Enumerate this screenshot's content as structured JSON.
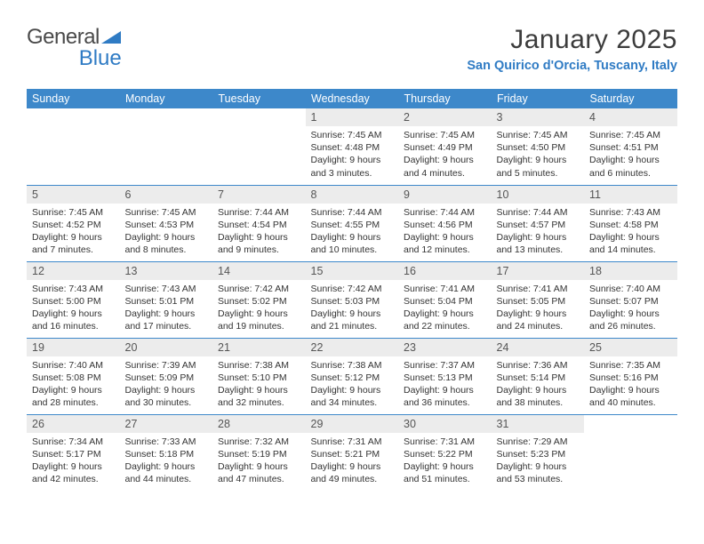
{
  "brand": {
    "part1": "General",
    "part2": "Blue"
  },
  "title": "January 2025",
  "location": "San Quirico d'Orcia, Tuscany, Italy",
  "colors": {
    "header_bg": "#3d88ca",
    "header_text": "#ffffff",
    "daynum_bg": "#ececec",
    "border": "#3d88ca",
    "brand_blue": "#2f7bc4",
    "text": "#333333"
  },
  "daynames": [
    "Sunday",
    "Monday",
    "Tuesday",
    "Wednesday",
    "Thursday",
    "Friday",
    "Saturday"
  ],
  "weeks": [
    [
      null,
      null,
      null,
      {
        "n": "1",
        "sr": "7:45 AM",
        "ss": "4:48 PM",
        "dl": "9 hours and 3 minutes."
      },
      {
        "n": "2",
        "sr": "7:45 AM",
        "ss": "4:49 PM",
        "dl": "9 hours and 4 minutes."
      },
      {
        "n": "3",
        "sr": "7:45 AM",
        "ss": "4:50 PM",
        "dl": "9 hours and 5 minutes."
      },
      {
        "n": "4",
        "sr": "7:45 AM",
        "ss": "4:51 PM",
        "dl": "9 hours and 6 minutes."
      }
    ],
    [
      {
        "n": "5",
        "sr": "7:45 AM",
        "ss": "4:52 PM",
        "dl": "9 hours and 7 minutes."
      },
      {
        "n": "6",
        "sr": "7:45 AM",
        "ss": "4:53 PM",
        "dl": "9 hours and 8 minutes."
      },
      {
        "n": "7",
        "sr": "7:44 AM",
        "ss": "4:54 PM",
        "dl": "9 hours and 9 minutes."
      },
      {
        "n": "8",
        "sr": "7:44 AM",
        "ss": "4:55 PM",
        "dl": "9 hours and 10 minutes."
      },
      {
        "n": "9",
        "sr": "7:44 AM",
        "ss": "4:56 PM",
        "dl": "9 hours and 12 minutes."
      },
      {
        "n": "10",
        "sr": "7:44 AM",
        "ss": "4:57 PM",
        "dl": "9 hours and 13 minutes."
      },
      {
        "n": "11",
        "sr": "7:43 AM",
        "ss": "4:58 PM",
        "dl": "9 hours and 14 minutes."
      }
    ],
    [
      {
        "n": "12",
        "sr": "7:43 AM",
        "ss": "5:00 PM",
        "dl": "9 hours and 16 minutes."
      },
      {
        "n": "13",
        "sr": "7:43 AM",
        "ss": "5:01 PM",
        "dl": "9 hours and 17 minutes."
      },
      {
        "n": "14",
        "sr": "7:42 AM",
        "ss": "5:02 PM",
        "dl": "9 hours and 19 minutes."
      },
      {
        "n": "15",
        "sr": "7:42 AM",
        "ss": "5:03 PM",
        "dl": "9 hours and 21 minutes."
      },
      {
        "n": "16",
        "sr": "7:41 AM",
        "ss": "5:04 PM",
        "dl": "9 hours and 22 minutes."
      },
      {
        "n": "17",
        "sr": "7:41 AM",
        "ss": "5:05 PM",
        "dl": "9 hours and 24 minutes."
      },
      {
        "n": "18",
        "sr": "7:40 AM",
        "ss": "5:07 PM",
        "dl": "9 hours and 26 minutes."
      }
    ],
    [
      {
        "n": "19",
        "sr": "7:40 AM",
        "ss": "5:08 PM",
        "dl": "9 hours and 28 minutes."
      },
      {
        "n": "20",
        "sr": "7:39 AM",
        "ss": "5:09 PM",
        "dl": "9 hours and 30 minutes."
      },
      {
        "n": "21",
        "sr": "7:38 AM",
        "ss": "5:10 PM",
        "dl": "9 hours and 32 minutes."
      },
      {
        "n": "22",
        "sr": "7:38 AM",
        "ss": "5:12 PM",
        "dl": "9 hours and 34 minutes."
      },
      {
        "n": "23",
        "sr": "7:37 AM",
        "ss": "5:13 PM",
        "dl": "9 hours and 36 minutes."
      },
      {
        "n": "24",
        "sr": "7:36 AM",
        "ss": "5:14 PM",
        "dl": "9 hours and 38 minutes."
      },
      {
        "n": "25",
        "sr": "7:35 AM",
        "ss": "5:16 PM",
        "dl": "9 hours and 40 minutes."
      }
    ],
    [
      {
        "n": "26",
        "sr": "7:34 AM",
        "ss": "5:17 PM",
        "dl": "9 hours and 42 minutes."
      },
      {
        "n": "27",
        "sr": "7:33 AM",
        "ss": "5:18 PM",
        "dl": "9 hours and 44 minutes."
      },
      {
        "n": "28",
        "sr": "7:32 AM",
        "ss": "5:19 PM",
        "dl": "9 hours and 47 minutes."
      },
      {
        "n": "29",
        "sr": "7:31 AM",
        "ss": "5:21 PM",
        "dl": "9 hours and 49 minutes."
      },
      {
        "n": "30",
        "sr": "7:31 AM",
        "ss": "5:22 PM",
        "dl": "9 hours and 51 minutes."
      },
      {
        "n": "31",
        "sr": "7:29 AM",
        "ss": "5:23 PM",
        "dl": "9 hours and 53 minutes."
      },
      null
    ]
  ],
  "labels": {
    "sunrise": "Sunrise:",
    "sunset": "Sunset:",
    "daylight": "Daylight:"
  }
}
